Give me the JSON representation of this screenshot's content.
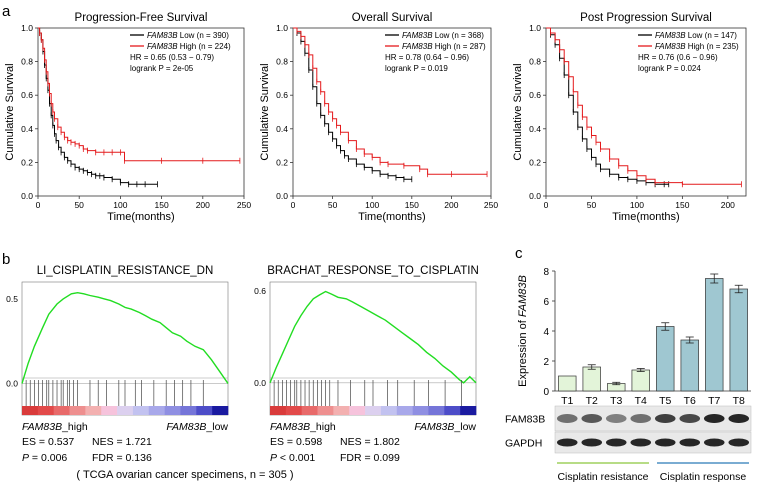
{
  "panel_letters": {
    "a": "a",
    "b": "b",
    "c": "c"
  },
  "survival_common": {
    "ylabel": "Cumulative Survival",
    "xlabel": "Time(months)",
    "gene": "FAM83B",
    "low_word": " Low",
    "high_word": " High",
    "colors": {
      "low": "#000000",
      "high": "#e41a1c"
    }
  },
  "chart_data": [
    {
      "type": "line",
      "title": "Progression-Free Survival",
      "xlabel": "Time(months)",
      "ylabel": "Cumulative Survival",
      "xlim": [
        0,
        250
      ],
      "ylim": [
        0,
        1
      ],
      "x_ticks": [
        "0",
        "50",
        "100",
        "150",
        "200",
        "250"
      ],
      "y_ticks": [
        "0.0",
        "0.2",
        "0.4",
        "0.6",
        "0.8",
        "1.0"
      ],
      "legend": {
        "low_n": " (n = 390)",
        "high_n": " (n = 224)",
        "hr": "HR = 0.65 (0.53 − 0.79)",
        "logrank": "logrank P = 2e-05"
      },
      "series": [
        {
          "name": "FAM83B Low (n = 390)",
          "color": "#000000",
          "x": [
            0,
            2,
            4,
            6,
            8,
            10,
            12,
            14,
            16,
            18,
            20,
            22,
            25,
            28,
            32,
            36,
            40,
            45,
            50,
            55,
            60,
            65,
            70,
            75,
            80,
            90,
            100,
            110,
            120,
            130,
            145
          ],
          "y": [
            1.0,
            0.97,
            0.93,
            0.86,
            0.78,
            0.7,
            0.63,
            0.55,
            0.48,
            0.42,
            0.37,
            0.33,
            0.29,
            0.26,
            0.23,
            0.21,
            0.19,
            0.17,
            0.16,
            0.15,
            0.14,
            0.13,
            0.12,
            0.12,
            0.11,
            0.1,
            0.08,
            0.07,
            0.07,
            0.07,
            0.07
          ]
        },
        {
          "name": "FAM83B High (n = 224)",
          "color": "#e41a1c",
          "x": [
            0,
            2,
            4,
            6,
            8,
            10,
            12,
            14,
            16,
            18,
            20,
            24,
            28,
            32,
            36,
            40,
            45,
            50,
            55,
            60,
            70,
            80,
            90,
            100,
            105,
            150,
            200,
            245
          ],
          "y": [
            1.0,
            0.97,
            0.93,
            0.88,
            0.81,
            0.74,
            0.67,
            0.61,
            0.55,
            0.5,
            0.46,
            0.41,
            0.38,
            0.35,
            0.33,
            0.32,
            0.31,
            0.3,
            0.28,
            0.27,
            0.26,
            0.26,
            0.26,
            0.26,
            0.21,
            0.21,
            0.21,
            0.21
          ]
        }
      ]
    },
    {
      "type": "line",
      "title": "Overall Survival",
      "xlabel": "Time(months)",
      "ylabel": "Cumulative Survival",
      "xlim": [
        0,
        250
      ],
      "ylim": [
        0,
        1
      ],
      "x_ticks": [
        "0",
        "50",
        "100",
        "150",
        "200",
        "250"
      ],
      "y_ticks": [
        "0.0",
        "0.2",
        "0.4",
        "0.6",
        "0.8",
        "1.0"
      ],
      "legend": {
        "low_n": " (n = 368)",
        "high_n": " (n = 287)",
        "hr": "HR = 0.78 (0.64 − 0.96)",
        "logrank": "logrank P = 0.019"
      },
      "series": [
        {
          "name": "FAM83B Low (n = 368)",
          "color": "#000000",
          "x": [
            0,
            5,
            10,
            15,
            20,
            25,
            30,
            35,
            40,
            45,
            50,
            55,
            60,
            65,
            70,
            80,
            90,
            100,
            110,
            120,
            130,
            140,
            150
          ],
          "y": [
            1.0,
            0.97,
            0.92,
            0.85,
            0.75,
            0.65,
            0.55,
            0.48,
            0.43,
            0.38,
            0.34,
            0.3,
            0.27,
            0.24,
            0.22,
            0.19,
            0.17,
            0.15,
            0.13,
            0.12,
            0.11,
            0.1,
            0.1
          ]
        },
        {
          "name": "FAM83B High (n = 287)",
          "color": "#e41a1c",
          "x": [
            0,
            5,
            10,
            15,
            20,
            25,
            30,
            35,
            40,
            45,
            50,
            55,
            60,
            70,
            80,
            90,
            100,
            110,
            120,
            140,
            160,
            170,
            200,
            245
          ],
          "y": [
            1.0,
            0.98,
            0.95,
            0.9,
            0.84,
            0.76,
            0.68,
            0.62,
            0.55,
            0.5,
            0.46,
            0.42,
            0.38,
            0.33,
            0.28,
            0.25,
            0.23,
            0.2,
            0.19,
            0.18,
            0.16,
            0.13,
            0.13,
            0.13
          ]
        }
      ]
    },
    {
      "type": "line",
      "title": "Post Progression Survival",
      "xlabel": "Time(months)",
      "ylabel": "Cumulative Survival",
      "xlim": [
        0,
        220
      ],
      "ylim": [
        0,
        1
      ],
      "x_ticks": [
        "0",
        "50",
        "100",
        "150",
        "200"
      ],
      "y_ticks": [
        "0.0",
        "0.2",
        "0.4",
        "0.6",
        "0.8",
        "1.0"
      ],
      "legend": {
        "low_n": " (n = 147)",
        "high_n": " (n = 235)",
        "hr": "HR = 0.76 (0.6 − 0.96)",
        "logrank": "logrank P = 0.024"
      },
      "series": [
        {
          "name": "FAM83B Low (n = 147)",
          "color": "#000000",
          "x": [
            0,
            5,
            10,
            15,
            20,
            25,
            30,
            35,
            40,
            45,
            50,
            55,
            60,
            70,
            80,
            90,
            100,
            110,
            120,
            130,
            135
          ],
          "y": [
            1.0,
            0.96,
            0.9,
            0.82,
            0.72,
            0.6,
            0.5,
            0.41,
            0.34,
            0.28,
            0.23,
            0.19,
            0.16,
            0.13,
            0.11,
            0.1,
            0.09,
            0.08,
            0.07,
            0.07,
            0.07
          ]
        },
        {
          "name": "FAM83B High (n = 235)",
          "color": "#e41a1c",
          "x": [
            0,
            5,
            10,
            15,
            20,
            25,
            30,
            35,
            40,
            45,
            50,
            55,
            60,
            70,
            80,
            90,
            100,
            110,
            120,
            150,
            215
          ],
          "y": [
            1.0,
            0.97,
            0.93,
            0.87,
            0.8,
            0.71,
            0.62,
            0.54,
            0.47,
            0.41,
            0.36,
            0.32,
            0.28,
            0.22,
            0.18,
            0.15,
            0.12,
            0.1,
            0.08,
            0.07,
            0.07
          ]
        }
      ]
    },
    {
      "type": "line",
      "title": "LI_CISPLATIN_RESISTANCE_DN",
      "y_ticks": [
        "0.5",
        "0.0"
      ],
      "ylim": [
        -0.05,
        0.6
      ],
      "color": "#22dd22",
      "x": [
        0,
        0.03,
        0.06,
        0.1,
        0.13,
        0.17,
        0.2,
        0.24,
        0.27,
        0.3,
        0.33,
        0.37,
        0.4,
        0.43,
        0.47,
        0.5,
        0.53,
        0.57,
        0.6,
        0.63,
        0.67,
        0.7,
        0.73,
        0.77,
        0.8,
        0.84,
        0.88,
        0.92,
        0.96,
        1.0
      ],
      "y": [
        0.0,
        0.12,
        0.22,
        0.33,
        0.41,
        0.47,
        0.5,
        0.53,
        0.537,
        0.53,
        0.52,
        0.51,
        0.5,
        0.49,
        0.47,
        0.45,
        0.44,
        0.42,
        0.4,
        0.38,
        0.36,
        0.33,
        0.3,
        0.28,
        0.25,
        0.22,
        0.2,
        0.14,
        0.07,
        0.0
      ],
      "hits": [
        0.02,
        0.04,
        0.06,
        0.08,
        0.1,
        0.12,
        0.13,
        0.15,
        0.17,
        0.19,
        0.2,
        0.22,
        0.23,
        0.25,
        0.27,
        0.33,
        0.37,
        0.41,
        0.47,
        0.5,
        0.55,
        0.58,
        0.64,
        0.7,
        0.74,
        0.78,
        0.82,
        0.88
      ],
      "bar_colors": [
        "#d93b3b",
        "#e24a4a",
        "#e86a6a",
        "#ee8f8f",
        "#f3b0b0",
        "#f6c3dc",
        "#dcd0ef",
        "#c2c2f0",
        "#a8a8ea",
        "#8f8fe2",
        "#7575d8",
        "#4d4dc8",
        "#1a1aa0"
      ],
      "label_high": "FAM83B",
      "label_high_suffix": "_high",
      "label_low": "FAM83B",
      "label_low_suffix": "_low",
      "es": "ES = 0.537",
      "nes": "NES = 1.721",
      "p_label": "P",
      "p_value": " = 0.006",
      "fdr": "FDR = 0.136"
    },
    {
      "type": "line",
      "title": "BRACHAT_RESPONSE_TO_CISPLATIN",
      "y_ticks": [
        "0.6",
        "0.0"
      ],
      "ylim": [
        -0.06,
        0.66
      ],
      "color": "#22dd22",
      "x": [
        0,
        0.03,
        0.06,
        0.09,
        0.12,
        0.15,
        0.18,
        0.21,
        0.24,
        0.27,
        0.3,
        0.33,
        0.37,
        0.4,
        0.44,
        0.48,
        0.52,
        0.56,
        0.6,
        0.64,
        0.68,
        0.72,
        0.76,
        0.8,
        0.84,
        0.88,
        0.92,
        0.94,
        0.97,
        1.0
      ],
      "y": [
        0.0,
        0.1,
        0.19,
        0.28,
        0.37,
        0.44,
        0.5,
        0.55,
        0.575,
        0.598,
        0.58,
        0.56,
        0.55,
        0.53,
        0.5,
        0.47,
        0.44,
        0.41,
        0.37,
        0.33,
        0.29,
        0.25,
        0.2,
        0.16,
        0.11,
        0.07,
        0.02,
        0.0,
        0.04,
        0.0
      ],
      "hits": [
        0.02,
        0.04,
        0.06,
        0.08,
        0.1,
        0.12,
        0.13,
        0.15,
        0.17,
        0.19,
        0.21,
        0.23,
        0.25,
        0.27,
        0.29,
        0.33,
        0.39,
        0.46,
        0.5,
        0.57,
        0.62,
        0.7,
        0.77,
        0.85,
        0.93
      ],
      "bar_colors": [
        "#d93b3b",
        "#e24a4a",
        "#e86a6a",
        "#ee8f8f",
        "#f3b0b0",
        "#f6c3dc",
        "#dcd0ef",
        "#c2c2f0",
        "#a8a8ea",
        "#8f8fe2",
        "#7575d8",
        "#4d4dc8",
        "#1a1aa0"
      ],
      "label_high": "FAM83B",
      "label_high_suffix": "_high",
      "label_low": "FAM83B",
      "label_low_suffix": "_low",
      "es": "ES = 0.598",
      "nes": "NES = 1.802",
      "p_label": "P",
      "p_value": " < 0.001",
      "fdr": "FDR = 0.099"
    },
    {
      "type": "bar",
      "ylabel_prefix": "Expression of ",
      "ylabel_gene": "FAM83B",
      "categories": [
        "T1",
        "T2",
        "T3",
        "T4",
        "T5",
        "T6",
        "T7",
        "T8"
      ],
      "values": [
        1.0,
        1.6,
        0.5,
        1.4,
        4.3,
        3.4,
        7.5,
        6.8
      ],
      "errors": [
        0,
        0.15,
        0.08,
        0.1,
        0.25,
        0.2,
        0.3,
        0.25
      ],
      "colors": [
        "#e3f4d9",
        "#e3f4d9",
        "#e3f4d9",
        "#e3f4d9",
        "#9fc7d1",
        "#9fc7d1",
        "#9fc7d1",
        "#9fc7d1"
      ],
      "ylim": [
        0,
        8
      ],
      "y_ticks": [
        "0",
        "2",
        "4",
        "6",
        "8"
      ]
    }
  ],
  "gsea_footer": "( TCGA ovarian cancer specimens, n = 305 )",
  "blot": {
    "labels": [
      "FAM83B",
      "GAPDH"
    ],
    "fam83b_intensity": [
      0.55,
      0.7,
      0.45,
      0.55,
      0.85,
      0.8,
      1.0,
      1.0
    ],
    "gapdh_intensity": [
      1.0,
      1.0,
      1.0,
      1.0,
      1.0,
      1.0,
      1.0,
      1.0
    ]
  },
  "groups": [
    {
      "label": "Cisplatin resistance",
      "color": "#8cc63f"
    },
    {
      "label": "Cisplatin response",
      "color": "#2a7ab8"
    }
  ]
}
